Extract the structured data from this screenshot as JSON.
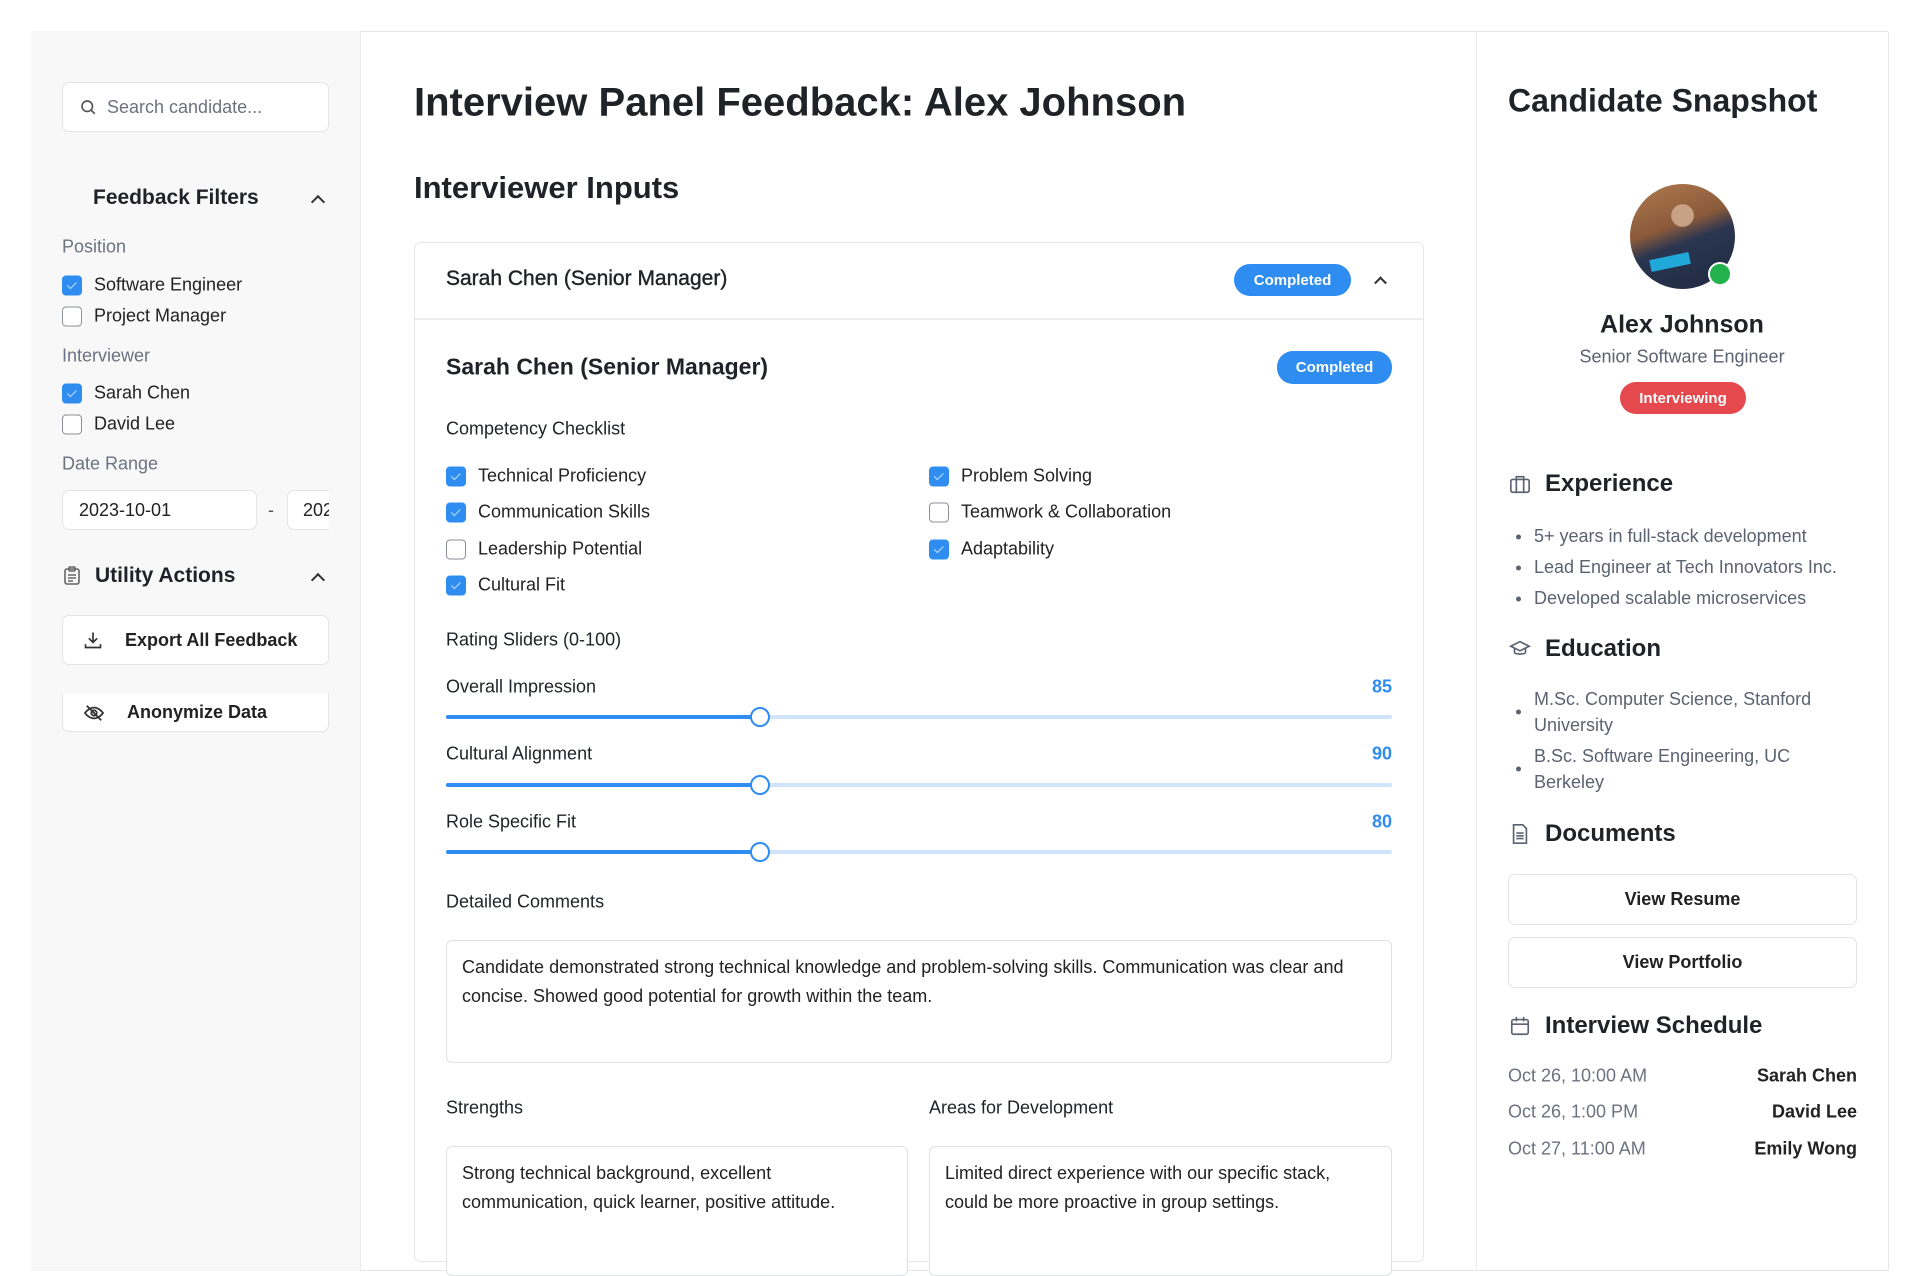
{
  "sidebar": {
    "search_placeholder": "Search candidate...",
    "filters_title": "Feedback Filters",
    "position_label": "Position",
    "positions": [
      {
        "label": "Software Engineer",
        "checked": true
      },
      {
        "label": "Project Manager",
        "checked": false
      }
    ],
    "interviewer_label": "Interviewer",
    "interviewers": [
      {
        "label": "Sarah Chen",
        "checked": true
      },
      {
        "label": "David Lee",
        "checked": false
      }
    ],
    "date_range_label": "Date Range",
    "date_from": "2023-10-01",
    "date_separator": "-",
    "date_to": "202",
    "utility_title": "Utility Actions",
    "export_label": "Export All Feedback",
    "anonymize_label": "Anonymize Data"
  },
  "main": {
    "title": "Interview Panel Feedback: Alex Johnson",
    "subtitle": "Interviewer Inputs",
    "panel": {
      "header_name": "Sarah Chen (Senior Manager)",
      "header_status": "Completed",
      "name": "Sarah Chen (Senior Manager)",
      "status": "Completed",
      "checklist_label": "Competency Checklist",
      "checklist": [
        {
          "label": "Technical Proficiency",
          "checked": true
        },
        {
          "label": "Problem Solving",
          "checked": true
        },
        {
          "label": "Communication Skills",
          "checked": true
        },
        {
          "label": "Teamwork & Collaboration",
          "checked": false
        },
        {
          "label": "Leadership Potential",
          "checked": false
        },
        {
          "label": "Adaptability",
          "checked": true
        },
        {
          "label": "Cultural Fit",
          "checked": true
        }
      ],
      "sliders_label": "Rating Sliders (0-100)",
      "sliders": [
        {
          "label": "Overall Impression",
          "value": "85"
        },
        {
          "label": "Cultural Alignment",
          "value": "90"
        },
        {
          "label": "Role Specific Fit",
          "value": "80"
        }
      ],
      "comments_label": "Detailed Comments",
      "comments": "Candidate demonstrated strong technical knowledge and problem-solving skills. Communication was clear and concise. Showed good potential for growth within the team.",
      "strengths_label": "Strengths",
      "strengths": "Strong technical background, excellent communication, quick learner, positive attitude.",
      "development_label": "Areas for Development",
      "development": "Limited direct experience with our specific stack, could be more proactive in group settings."
    }
  },
  "snapshot": {
    "title": "Candidate Snapshot",
    "name": "Alex Johnson",
    "role": "Senior Software Engineer",
    "status": "Interviewing",
    "experience_title": "Experience",
    "experience": [
      "5+ years in full-stack development",
      "Lead Engineer at Tech Innovators Inc.",
      "Developed scalable microservices"
    ],
    "education_title": "Education",
    "education": [
      "M.Sc. Computer Science, Stanford University",
      "B.Sc. Software Engineering, UC Berkeley"
    ],
    "documents_title": "Documents",
    "view_resume": "View Resume",
    "view_portfolio": "View Portfolio",
    "schedule_title": "Interview Schedule",
    "schedule": [
      {
        "time": "Oct 26, 10:00 AM",
        "interviewer": "Sarah Chen"
      },
      {
        "time": "Oct 26, 1:00 PM",
        "interviewer": "David Lee"
      },
      {
        "time": "Oct 27, 11:00 AM",
        "interviewer": "Emily Wong"
      }
    ]
  },
  "colors": {
    "accent": "#2f8cf0",
    "status_interviewing": "#e5484d",
    "online": "#22b14c"
  }
}
